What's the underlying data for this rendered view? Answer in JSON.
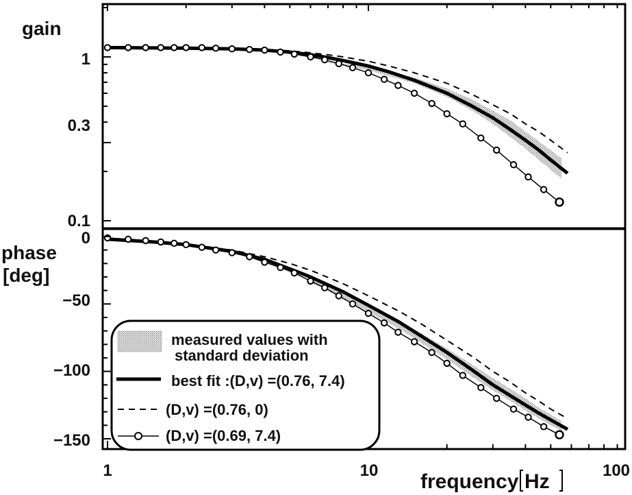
{
  "chart_data": [
    {
      "type": "line",
      "panel": "gain",
      "ylabel": "gain",
      "yscale": "log",
      "xscale": "log",
      "xlim": [
        1,
        100
      ],
      "ylim": [
        0.1,
        2.2
      ],
      "yticks": [
        0.1,
        0.3,
        1
      ],
      "ytick_labels": [
        "0.1",
        "0.3",
        "1"
      ],
      "grid": false,
      "band": {
        "x": [
          6.9,
          10,
          15,
          20,
          25,
          30,
          35,
          40,
          45,
          50,
          55
        ],
        "lower": [
          0.925,
          0.83,
          0.69,
          0.57,
          0.47,
          0.39,
          0.325,
          0.275,
          0.235,
          0.205,
          0.18
        ],
        "upper": [
          0.94,
          0.87,
          0.75,
          0.64,
          0.55,
          0.47,
          0.41,
          0.35,
          0.305,
          0.27,
          0.24
        ]
      },
      "series": [
        {
          "name": "best fit : (D,v) = (0.76, 7.4)",
          "style": "thick",
          "x": [
            1,
            2,
            3,
            4,
            5,
            6,
            7,
            8,
            10,
            12,
            15,
            20,
            25,
            30,
            35,
            40,
            45,
            50,
            58
          ],
          "y": [
            1.14,
            1.13,
            1.12,
            1.1,
            1.07,
            1.03,
            0.99,
            0.95,
            0.88,
            0.81,
            0.72,
            0.6,
            0.5,
            0.425,
            0.36,
            0.31,
            0.27,
            0.235,
            0.195
          ]
        },
        {
          "name": "(D,v) = (0.76, 0)",
          "style": "dashed",
          "x": [
            1,
            2,
            3,
            4,
            5,
            6,
            7,
            8,
            10,
            12,
            15,
            20,
            25,
            30,
            35,
            40,
            45,
            50,
            58
          ],
          "y": [
            1.14,
            1.13,
            1.12,
            1.11,
            1.09,
            1.06,
            1.03,
            1.0,
            0.94,
            0.88,
            0.8,
            0.69,
            0.59,
            0.51,
            0.45,
            0.39,
            0.35,
            0.31,
            0.26
          ]
        },
        {
          "name": "(D,v) = (0.69, 7.4)",
          "style": "circles",
          "x": [
            1,
            1.2,
            1.4,
            1.6,
            1.8,
            2,
            2.3,
            2.6,
            3,
            3.5,
            4,
            4.6,
            5.2,
            6,
            6.8,
            7.7,
            8.7,
            10,
            11.5,
            13,
            15,
            17.5,
            20,
            23,
            27,
            31,
            36,
            41,
            47,
            54
          ],
          "y": [
            1.14,
            1.14,
            1.14,
            1.14,
            1.14,
            1.14,
            1.14,
            1.13,
            1.12,
            1.11,
            1.1,
            1.07,
            1.04,
            1.0,
            0.96,
            0.91,
            0.86,
            0.8,
            0.73,
            0.67,
            0.6,
            0.52,
            0.45,
            0.39,
            0.32,
            0.27,
            0.22,
            0.185,
            0.155,
            0.13
          ]
        }
      ]
    },
    {
      "type": "line",
      "panel": "phase",
      "ylabel": "phase\n[deg]",
      "xlabel": "frequency[Hz]",
      "xscale": "log",
      "xlim": [
        1,
        100
      ],
      "ylim": [
        -160,
        3
      ],
      "yticks": [
        0,
        -50,
        -100,
        -150
      ],
      "ytick_labels": [
        "0",
        "−50",
        "−100",
        "−150"
      ],
      "xticks": [
        1,
        10,
        100
      ],
      "xtick_labels": [
        "1",
        "10",
        "100"
      ],
      "grid": false,
      "band": {
        "x": [
          6,
          8,
          10,
          13,
          16,
          20,
          25,
          30,
          35,
          40,
          45,
          50,
          55
        ],
        "lower": [
          -34,
          -46,
          -56,
          -68,
          -79,
          -91,
          -104,
          -114,
          -122,
          -129,
          -135,
          -140,
          -144
        ],
        "upper": [
          -31,
          -41,
          -50,
          -62,
          -72,
          -83,
          -95,
          -105,
          -113,
          -120,
          -127,
          -132,
          -137
        ]
      },
      "series": [
        {
          "name": "best fit : (D,v) = (0.76, 7.4)",
          "style": "thick",
          "x": [
            1,
            1.5,
            2,
            3,
            4,
            5,
            6,
            8,
            10,
            13,
            16,
            20,
            25,
            30,
            35,
            40,
            45,
            50,
            58
          ],
          "y": [
            -2,
            -4,
            -6,
            -11,
            -17,
            -24,
            -30,
            -41,
            -51,
            -63,
            -74,
            -86,
            -99,
            -110,
            -118,
            -125,
            -131,
            -136,
            -143
          ]
        },
        {
          "name": "(D,v) = (0.76, 0)",
          "style": "dashed",
          "x": [
            1,
            1.5,
            2,
            3,
            4,
            5,
            6,
            8,
            10,
            13,
            16,
            20,
            25,
            30,
            35,
            40,
            45,
            50,
            58
          ],
          "y": [
            -2,
            -4,
            -6,
            -10,
            -15,
            -20,
            -25,
            -35,
            -44,
            -55,
            -65,
            -77,
            -89,
            -100,
            -108,
            -116,
            -122,
            -128,
            -135
          ]
        },
        {
          "name": "(D,v) = (0.69, 7.4)",
          "style": "circles",
          "x": [
            1,
            1.2,
            1.4,
            1.6,
            1.8,
            2,
            2.3,
            2.6,
            3,
            3.5,
            4,
            4.6,
            5.2,
            6,
            6.8,
            7.7,
            8.7,
            10,
            11.5,
            13,
            15,
            17.5,
            20,
            23,
            27,
            31,
            36,
            41,
            47,
            54
          ],
          "y": [
            -1,
            -2,
            -3,
            -4,
            -5,
            -6,
            -8,
            -10,
            -12,
            -15,
            -19,
            -23,
            -27,
            -33,
            -38,
            -44,
            -50,
            -57,
            -64,
            -71,
            -78,
            -86,
            -94,
            -103,
            -112,
            -120,
            -128,
            -134,
            -141,
            -147
          ]
        }
      ]
    }
  ],
  "legend": {
    "band_label_line1": "measured values with",
    "band_label_line2": "standard deviation",
    "items": [
      {
        "label": "best fit :(D,v) =(0.76, 7.4)"
      },
      {
        "label": "(D,v) =(0.76, 0)"
      },
      {
        "label": "(D,v) =(0.69, 7.4)"
      }
    ]
  },
  "labels": {
    "gain": "gain",
    "phase_line1": "phase",
    "phase_line2": "[deg]",
    "xlabel": "frequency",
    "xunit": "Hz",
    "x1": "1",
    "x10": "10",
    "x100": "100",
    "g1": "1",
    "g03": "0.3",
    "g01": "0.1",
    "p0": "0",
    "p50": "−50",
    "p100": "−100",
    "p150": "−150"
  }
}
